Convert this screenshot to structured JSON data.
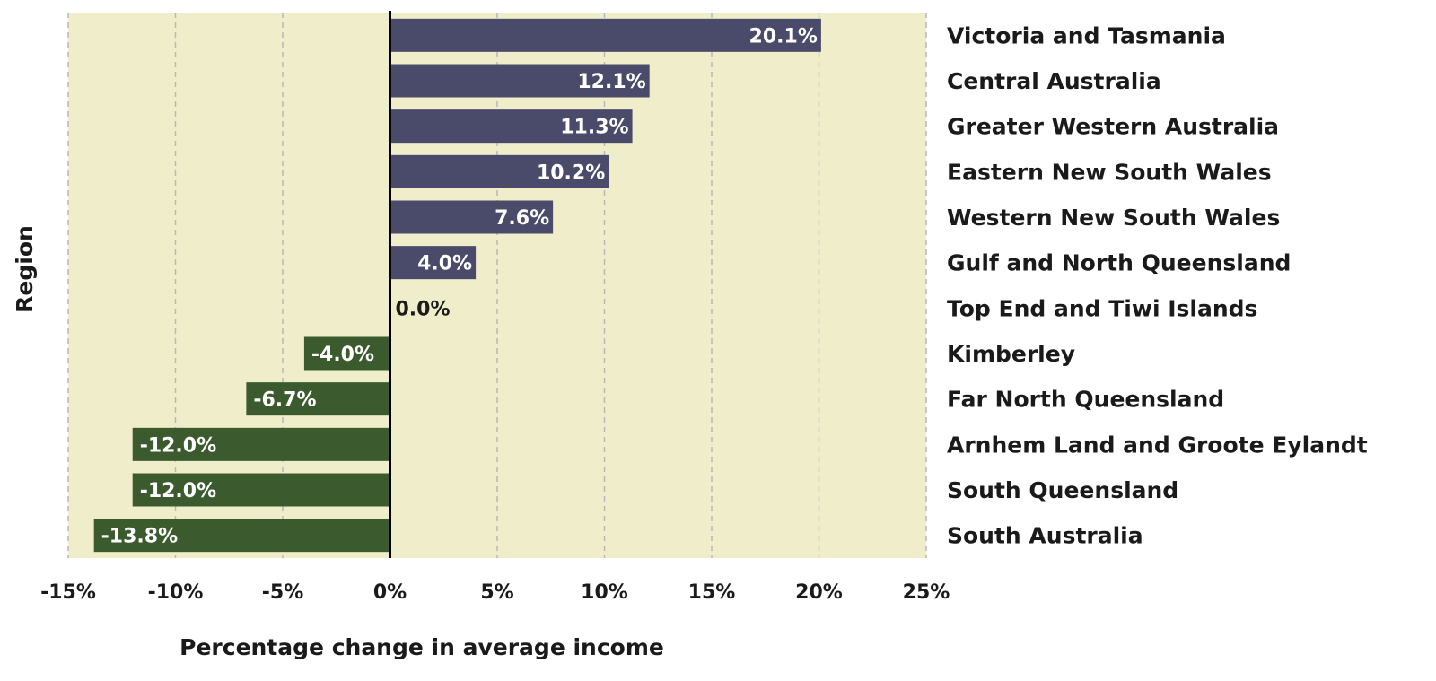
{
  "chart_data": {
    "type": "bar",
    "orientation": "horizontal",
    "categories": [
      "Victoria and Tasmania",
      "Central Australia",
      "Greater Western Australia",
      "Eastern New South Wales",
      "Western New South Wales",
      "Gulf and North Queensland",
      "Top End and Tiwi Islands",
      "Kimberley",
      "Far North Queensland",
      "Arnhem Land and Groote Eylandt",
      "South Queensland",
      "South Australia"
    ],
    "values": [
      20.1,
      12.1,
      11.3,
      10.2,
      7.6,
      4.0,
      0.0,
      -4.0,
      -6.7,
      -12.0,
      -12.0,
      -13.8
    ],
    "data_labels": [
      "20.1%",
      "12.1%",
      "11.3%",
      "10.2%",
      "7.6%",
      "4.0%",
      "0.0%",
      "-4.0%",
      "-6.7%",
      "-12.0%",
      "-12.0%",
      "-13.8%"
    ],
    "xticks": [
      -15,
      -10,
      -5,
      0,
      5,
      10,
      15,
      20,
      25
    ],
    "xtick_labels": [
      "-15%",
      "-10%",
      "-5%",
      "0%",
      "5%",
      "10%",
      "15%",
      "20%",
      "25%"
    ],
    "xlim": [
      -15,
      25
    ],
    "xlabel": "Percentage change in average income",
    "ylabel": "Region",
    "grid": true,
    "legend": "none",
    "colors": {
      "positive": "#4a4a6a",
      "negative": "#3b5a2e",
      "plot_background": "#f0edca",
      "grid": "#b8b8b8",
      "zero_line": "#000000"
    }
  }
}
